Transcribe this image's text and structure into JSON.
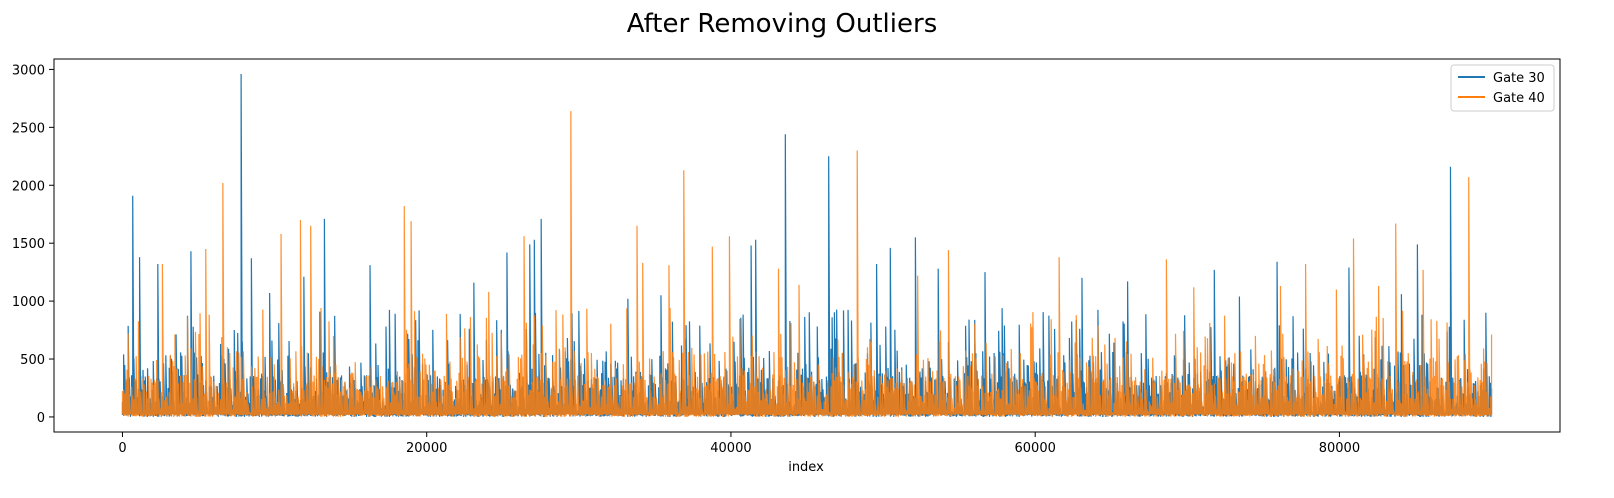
{
  "chart_data": {
    "type": "line",
    "title": "After Removing Outliers",
    "xlabel": "index",
    "ylabel": "",
    "xlim": [
      -4500,
      94500
    ],
    "ylim": [
      -130,
      3090
    ],
    "xticks": [
      0,
      20000,
      40000,
      60000,
      80000
    ],
    "xtick_labels": [
      "0",
      "20000",
      "40000",
      "60000",
      "80000"
    ],
    "yticks": [
      0,
      500,
      1000,
      1500,
      2000,
      2500,
      3000
    ],
    "ytick_labels": [
      "0",
      "500",
      "1000",
      "1500",
      "2000",
      "2500",
      "3000"
    ],
    "grid": false,
    "legend_position": "top-right",
    "x_range": [
      0,
      90000
    ],
    "series": [
      {
        "name": "Gate 30",
        "color": "#1f77b4",
        "peaks": [
          [
            700,
            1910
          ],
          [
            1100,
            1380
          ],
          [
            2300,
            1320
          ],
          [
            4500,
            1430
          ],
          [
            7800,
            2960
          ],
          [
            8500,
            1370
          ],
          [
            9700,
            1070
          ],
          [
            11900,
            1210
          ],
          [
            13300,
            1710
          ],
          [
            16300,
            1310
          ],
          [
            19500,
            920
          ],
          [
            23100,
            1160
          ],
          [
            25300,
            1420
          ],
          [
            26800,
            1490
          ],
          [
            27100,
            1530
          ],
          [
            27500,
            1710
          ],
          [
            33200,
            1020
          ],
          [
            35400,
            1050
          ],
          [
            41300,
            1480
          ],
          [
            41600,
            1530
          ],
          [
            43600,
            2440
          ],
          [
            46400,
            2250
          ],
          [
            49600,
            1320
          ],
          [
            50500,
            1460
          ],
          [
            52100,
            1550
          ],
          [
            53600,
            1280
          ],
          [
            56700,
            1250
          ],
          [
            63100,
            1200
          ],
          [
            66100,
            1170
          ],
          [
            71800,
            1270
          ],
          [
            73400,
            1040
          ],
          [
            75900,
            1340
          ],
          [
            80600,
            1290
          ],
          [
            84100,
            1060
          ],
          [
            85100,
            1490
          ],
          [
            87300,
            2160
          ],
          [
            89600,
            900
          ]
        ]
      },
      {
        "name": "Gate 40",
        "color": "#ff7f0e",
        "peaks": [
          [
            2600,
            1320
          ],
          [
            5500,
            1450
          ],
          [
            6600,
            2020
          ],
          [
            10400,
            1580
          ],
          [
            11700,
            1700
          ],
          [
            12400,
            1650
          ],
          [
            18500,
            1820
          ],
          [
            19000,
            1690
          ],
          [
            24100,
            1080
          ],
          [
            26400,
            1560
          ],
          [
            29500,
            2640
          ],
          [
            33800,
            1650
          ],
          [
            34200,
            1330
          ],
          [
            35900,
            1310
          ],
          [
            36900,
            2130
          ],
          [
            38800,
            1470
          ],
          [
            39900,
            1560
          ],
          [
            43100,
            1280
          ],
          [
            44500,
            1140
          ],
          [
            48300,
            2300
          ],
          [
            52300,
            1220
          ],
          [
            54300,
            1440
          ],
          [
            61600,
            1380
          ],
          [
            68600,
            1360
          ],
          [
            70400,
            1120
          ],
          [
            76100,
            1130
          ],
          [
            77800,
            1320
          ],
          [
            79800,
            1100
          ],
          [
            80900,
            1540
          ],
          [
            82600,
            1130
          ],
          [
            83700,
            1670
          ],
          [
            85500,
            1270
          ],
          [
            88500,
            2070
          ]
        ]
      }
    ]
  }
}
